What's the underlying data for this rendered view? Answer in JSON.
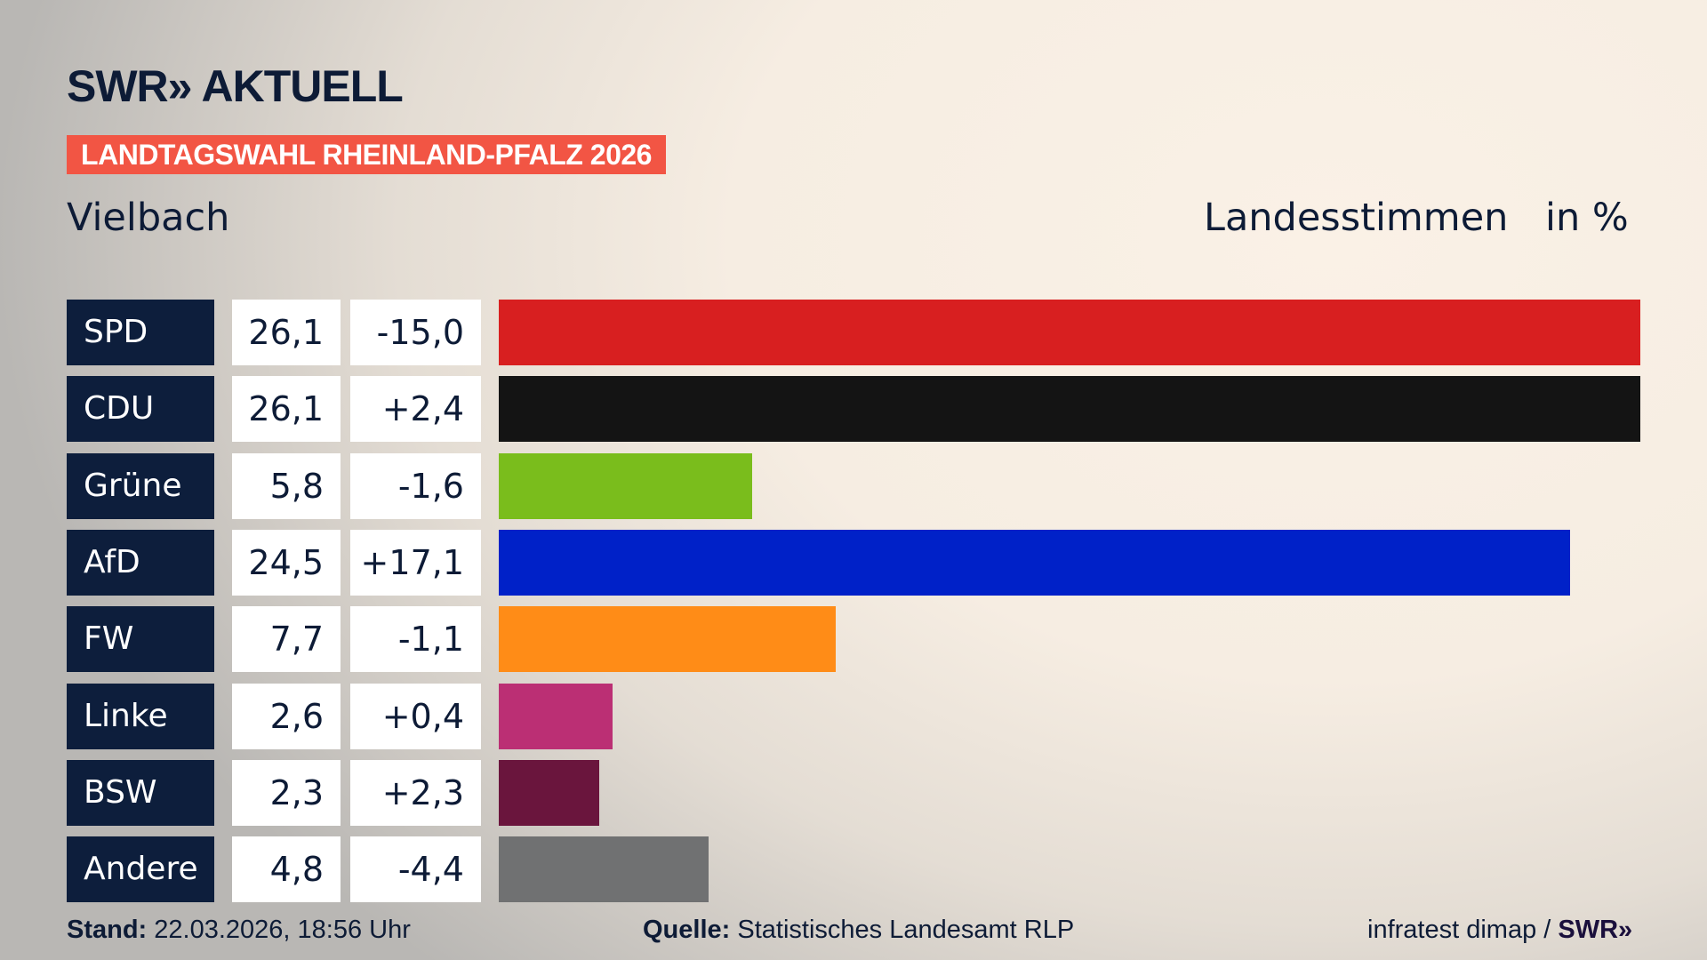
{
  "brand": {
    "logo": "SWR» AKTUELL"
  },
  "banner": "LANDTAGSWAHL RHEINLAND-PFALZ 2026",
  "place": "Vielbach",
  "header": {
    "label": "Landesstimmen",
    "unit": "in %"
  },
  "chart_data": {
    "type": "bar",
    "orientation": "horizontal",
    "categories": [
      "SPD",
      "CDU",
      "Grüne",
      "AfD",
      "FW",
      "Linke",
      "BSW",
      "Andere"
    ],
    "values": [
      26.1,
      26.1,
      5.8,
      24.5,
      7.7,
      2.6,
      2.3,
      4.8
    ],
    "value_labels": [
      "26,1",
      "26,1",
      "5,8",
      "24,5",
      "7,7",
      "2,6",
      "2,3",
      "4,8"
    ],
    "diff_labels": [
      "-15,0",
      "+2,4",
      "-1,6",
      "+17,1",
      "-1,1",
      "+0,4",
      "+2,3",
      "-4,4"
    ],
    "colors": [
      "#d81f20",
      "#141414",
      "#7abd1c",
      "#0021c8",
      "#ff8c17",
      "#bb2f74",
      "#6a153d",
      "#707172"
    ],
    "ylabel": "Landesstimmen",
    "unit": "in %"
  },
  "footer": {
    "stand_label": "Stand:",
    "stand_value": "22.03.2026, 18:56 Uhr",
    "quelle_label": "Quelle:",
    "quelle_value": "Statistisches Landesamt RLP",
    "credit": "infratest dimap /",
    "credit_logo": "SWR»"
  }
}
